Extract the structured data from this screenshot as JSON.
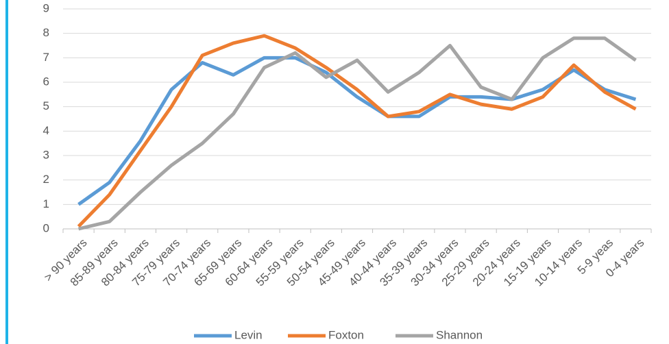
{
  "chart_data": {
    "type": "line",
    "categories": [
      "> 90 years",
      "85-89 years",
      "80-84 years",
      "75-79 years",
      "70-74 years",
      "65-69 years",
      "60-64 years",
      "55-59 years",
      "50-54 years",
      "45-49 years",
      "40-44 years",
      "35-39 years",
      "30-34 years",
      "25-29 years",
      "20-24 years",
      "15-19 years",
      "10-14 years",
      "5-9 yeas",
      "0-4 years"
    ],
    "series": [
      {
        "name": "Levin",
        "color": "#5b9bd5",
        "values": [
          1.0,
          1.9,
          3.6,
          5.7,
          6.8,
          6.3,
          7.0,
          7.0,
          6.4,
          5.4,
          4.6,
          4.6,
          5.4,
          5.4,
          5.3,
          5.7,
          6.5,
          5.7,
          5.3
        ]
      },
      {
        "name": "Foxton",
        "color": "#ed7d31",
        "values": [
          0.1,
          1.4,
          3.2,
          5.0,
          7.1,
          7.6,
          7.9,
          7.4,
          6.6,
          5.7,
          4.6,
          4.8,
          5.5,
          5.1,
          4.9,
          5.4,
          6.7,
          5.6,
          4.9
        ]
      },
      {
        "name": "Shannon",
        "color": "#a5a5a5",
        "values": [
          0.0,
          0.3,
          1.5,
          2.6,
          3.5,
          4.7,
          6.6,
          7.2,
          6.2,
          6.9,
          5.6,
          6.4,
          7.5,
          5.8,
          5.3,
          7.0,
          7.8,
          7.8,
          6.9
        ]
      }
    ],
    "ylim": [
      0,
      9
    ],
    "yticks": [
      0,
      1,
      2,
      3,
      4,
      5,
      6,
      7,
      8,
      9
    ],
    "grid": true,
    "legend": "bottom"
  }
}
